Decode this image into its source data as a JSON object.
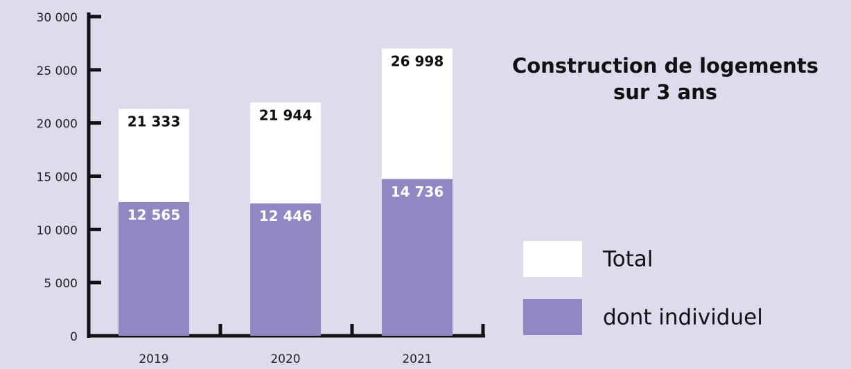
{
  "chart_data": {
    "type": "bar",
    "title": "Construction de logements sur 3 ans",
    "categories": [
      "2019",
      "2020",
      "2021"
    ],
    "series": [
      {
        "name": "Total",
        "color": "#ffffff",
        "values": [
          21333,
          21944,
          26998
        ],
        "value_labels": [
          "21 333",
          "21 944",
          "26 998"
        ]
      },
      {
        "name": "dont individuel",
        "color": "#8f88c3",
        "values": [
          12565,
          12446,
          14736
        ],
        "value_labels": [
          "12 565",
          "12 446",
          "14 736"
        ]
      }
    ],
    "ylim": [
      0,
      30000
    ],
    "yticks": [
      {
        "value": 0,
        "label": "0"
      },
      {
        "value": 5000,
        "label": "5 000"
      },
      {
        "value": 10000,
        "label": "10 000"
      },
      {
        "value": 15000,
        "label": "15 000"
      },
      {
        "value": 20000,
        "label": "20 000"
      },
      {
        "value": 25000,
        "label": "25 000"
      },
      {
        "value": 30000,
        "label": "30 000"
      }
    ]
  }
}
